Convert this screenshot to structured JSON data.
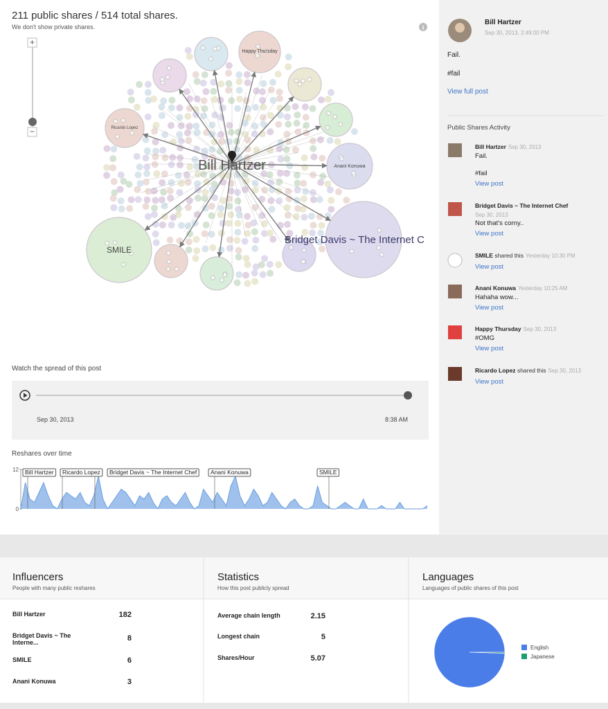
{
  "header": {
    "title": "211 public shares / 514 total shares.",
    "subtitle": "We don't show private shares."
  },
  "graph": {
    "center": "Bill Hartzer",
    "nodes": [
      "Happy Thursday",
      "Ricardo Lopez",
      "Anani Konuwa",
      "SMILE",
      "Bridget Davis ~ The Internet C"
    ]
  },
  "timeline": {
    "label": "Watch the spread of this post",
    "start": "Sep 30, 2013",
    "end": "8:38 AM"
  },
  "chart_data": [
    {
      "type": "area",
      "title": "Reshares over time",
      "color": "#9fc1ec",
      "ylim": [
        0,
        12
      ],
      "yticks": [
        0,
        12
      ],
      "values": [
        0,
        8,
        3,
        2,
        5,
        8,
        4,
        1,
        0,
        3,
        5,
        4,
        3,
        5,
        2,
        1,
        4,
        10,
        3,
        0,
        2,
        4,
        6,
        5,
        3,
        1,
        4,
        3,
        5,
        2,
        0,
        3,
        4,
        2,
        1,
        3,
        5,
        2,
        0,
        1,
        6,
        4,
        2,
        5,
        3,
        1,
        7,
        10,
        4,
        1,
        3,
        6,
        4,
        1,
        2,
        5,
        3,
        1,
        0,
        2,
        3,
        1,
        0,
        0,
        1,
        7,
        2,
        1,
        0,
        0,
        1,
        2,
        1,
        0,
        0,
        3,
        0,
        0,
        0,
        1,
        0,
        0,
        0,
        2,
        0,
        0,
        0,
        0,
        0,
        1
      ],
      "annotations": [
        "Bill Hartzer",
        "Ricardo Lopez",
        "Bridget Davis ~ The Internet Chef",
        "Anani Konuwa",
        "SMILE"
      ]
    },
    {
      "type": "pie",
      "title": "Languages",
      "subtitle": "Languages of public shares of this post",
      "categories": [
        "English",
        "Japanese"
      ],
      "values": [
        99.5,
        0.5
      ],
      "colors": [
        "#4a7de8",
        "#1e9e6e"
      ]
    }
  ],
  "post": {
    "author": "Bill Hartzer",
    "date": "Sep 30, 2013, 2:49:00 PM",
    "lines": [
      "Fail.",
      "#fail"
    ],
    "link": "View full post"
  },
  "activity": {
    "title": "Public Shares Activity",
    "items": [
      {
        "name": "Bill Hartzer",
        "date": "Sep 30, 2013",
        "lines": [
          "Fail.",
          "#fail"
        ],
        "link": "View post"
      },
      {
        "name": "Bridget Davis ~ The Internet Chef",
        "date": "Sep 30, 2013",
        "lines": [
          "Not that's corny.."
        ],
        "link": "View post"
      },
      {
        "name": "SMILE",
        "action": "shared this",
        "date": "Yesterday 10:30 PM",
        "lines": [],
        "link": "View post"
      },
      {
        "name": "Anani Konuwa",
        "date": "Yesterday 10:25 AM",
        "lines": [
          "Hahaha wow..."
        ],
        "link": "View post"
      },
      {
        "name": "Happy Thursday",
        "date": "Sep 30, 2013",
        "lines": [
          "#OMG"
        ],
        "link": "View post"
      },
      {
        "name": "Ricardo Lopez",
        "action": "shared this",
        "date": "Sep 30, 2013",
        "lines": [],
        "link": "View post"
      }
    ]
  },
  "influencers": {
    "title": "Influencers",
    "subtitle": "People with many public reshares",
    "rows": [
      [
        "Bill Hartzer",
        182
      ],
      [
        "Bridget Davis ~ The Interne...",
        8
      ],
      [
        "SMILE",
        6
      ],
      [
        "Anani Konuwa",
        3
      ]
    ]
  },
  "statistics": {
    "title": "Statistics",
    "subtitle": "How this post publicly spread",
    "rows": [
      [
        "Average chain length",
        2.15
      ],
      [
        "Longest chain",
        5
      ],
      [
        "Shares/Hour",
        5.07
      ]
    ]
  }
}
